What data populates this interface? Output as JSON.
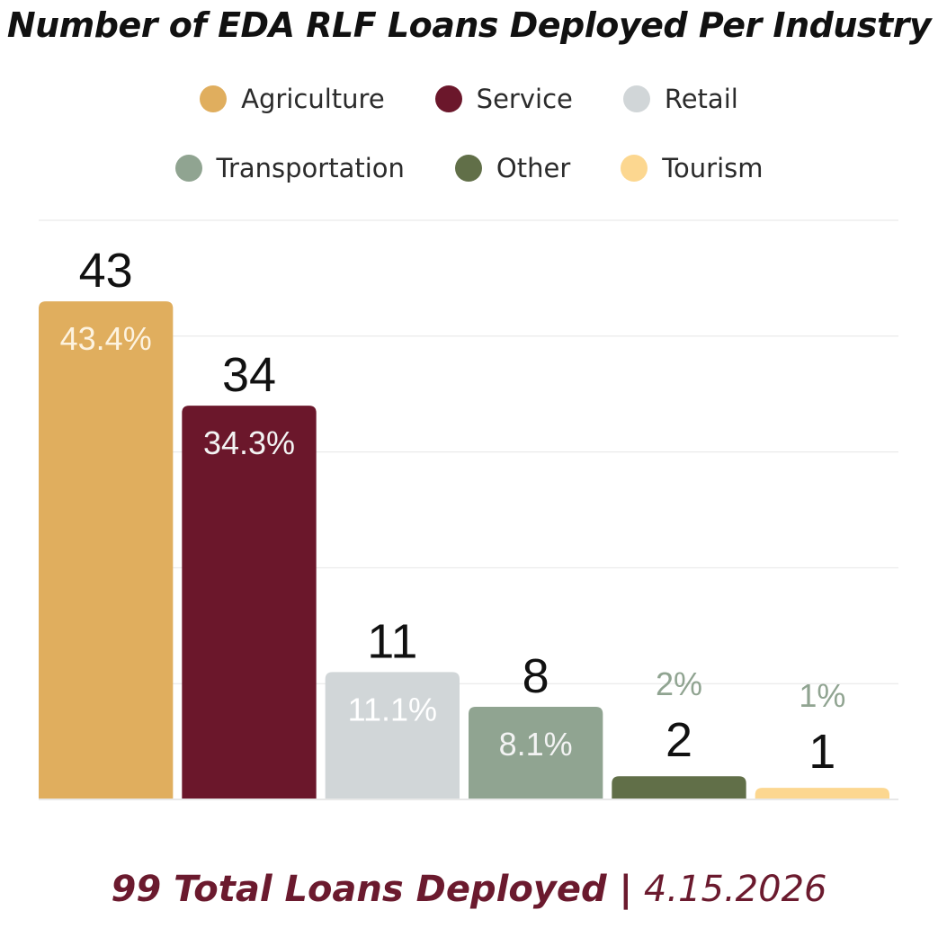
{
  "chart_data": {
    "type": "bar",
    "title": "Number of EDA RLF Loans Deployed Per Industry",
    "categories": [
      "Agriculture",
      "Service",
      "Retail",
      "Transportation",
      "Other",
      "Tourism"
    ],
    "values": [
      43,
      34,
      11,
      8,
      2,
      1
    ],
    "percent_labels": [
      "43.4%",
      "34.3%",
      "11.1%",
      "8.1%",
      "2%",
      "1%"
    ],
    "colors": [
      "#E0AE5E",
      "#6B172B",
      "#D1D6D8",
      "#90A491",
      "#616F48",
      "#FCD790"
    ],
    "ylim": [
      0,
      50
    ],
    "grid": true,
    "legend_position": "top"
  },
  "footer": {
    "total": "99 Total Loans Deployed |",
    "date": "4.15.2026"
  }
}
